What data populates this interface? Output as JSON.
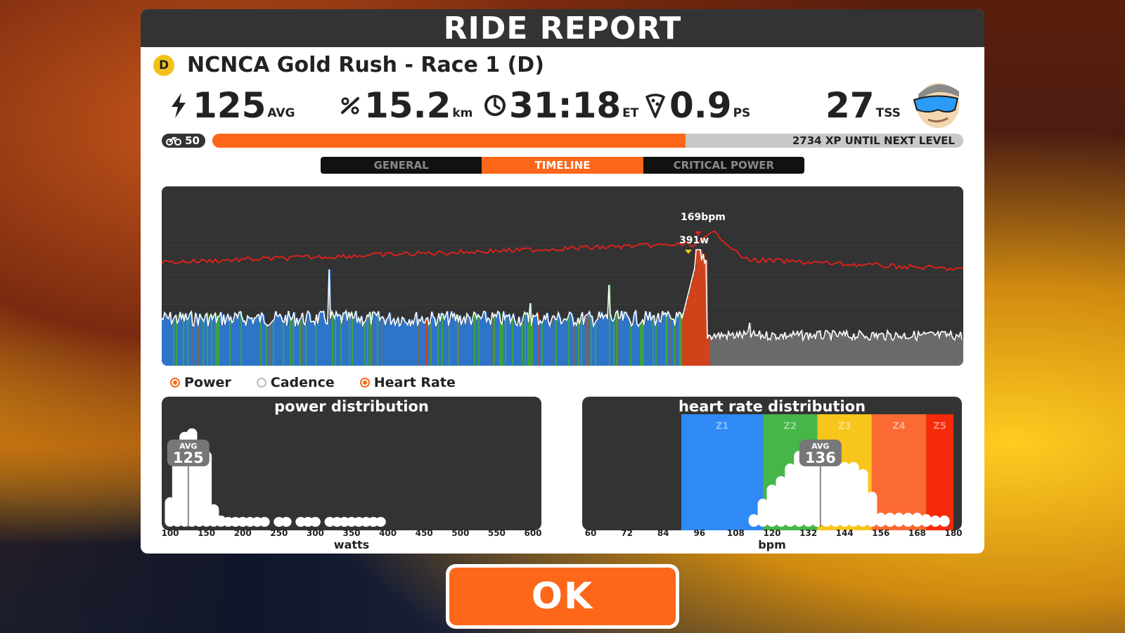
{
  "header": {
    "title": "RIDE REPORT"
  },
  "race": {
    "category": "D",
    "name": "NCNCA Gold Rush - Race 1 (D)"
  },
  "stats": {
    "power": {
      "value": "125",
      "unit": "AVG",
      "icon": "lightning-icon"
    },
    "distance": {
      "value": "15.2",
      "unit": "km",
      "icon": "distance-icon"
    },
    "time": {
      "value": "31:18",
      "unit": "ET",
      "icon": "clock-icon"
    },
    "pizza": {
      "value": "0.9",
      "unit": "PS",
      "icon": "pizza-icon"
    },
    "tss": {
      "value": "27",
      "unit": "TSS"
    }
  },
  "xp": {
    "level": "50",
    "progress": 0.63,
    "text": "2734 XP UNTIL NEXT LEVEL"
  },
  "tabs": [
    {
      "label": "GENERAL",
      "active": false
    },
    {
      "label": "TIMELINE",
      "active": true
    },
    {
      "label": "CRITICAL POWER",
      "active": false
    }
  ],
  "timeline": {
    "peak_hr_label": "169bpm",
    "peak_power_label": "391w",
    "colors": {
      "hr": "#e8201a",
      "power_line": "#ffffff",
      "z1": "#2e74c8",
      "z2": "#3fa040",
      "z4": "#d0421a",
      "grey": "#6a6a6a"
    }
  },
  "legend": [
    {
      "label": "Power",
      "checked": true
    },
    {
      "label": "Cadence",
      "checked": false
    },
    {
      "label": "Heart Rate",
      "checked": true
    }
  ],
  "power_distribution": {
    "title": "power distribution",
    "avg_label": "AVG",
    "avg_value": "125",
    "axis_title": "watts",
    "ticks": [
      "100",
      "150",
      "200",
      "250",
      "300",
      "350",
      "400",
      "450",
      "500",
      "550",
      "600"
    ]
  },
  "hr_distribution": {
    "title": "heart rate distribution",
    "avg_label": "AVG",
    "avg_value": "136",
    "axis_title": "bpm",
    "zones": [
      "Z1",
      "Z2",
      "Z3",
      "Z4",
      "Z5"
    ],
    "zone_colors": [
      "#2f8af5",
      "#46b648",
      "#f7c51c",
      "#fb6a33",
      "#f52a0a"
    ],
    "ticks": [
      "60",
      "72",
      "84",
      "96",
      "108",
      "120",
      "132",
      "144",
      "156",
      "168",
      "180"
    ]
  },
  "ok_button": {
    "label": "OK"
  }
}
